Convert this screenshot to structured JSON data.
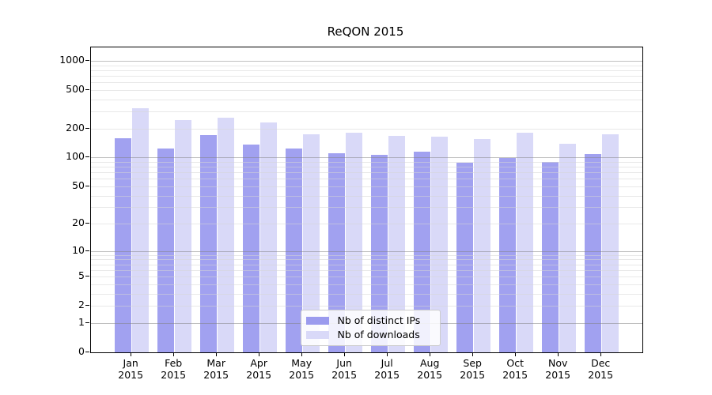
{
  "title": "ReQON 2015",
  "chart_data": {
    "type": "bar",
    "title": "ReQON 2015",
    "categories": [
      "Jan",
      "Feb",
      "Mar",
      "Apr",
      "May",
      "Jun",
      "Jul",
      "Aug",
      "Sep",
      "Oct",
      "Nov",
      "Dec"
    ],
    "x_tick_year": "2015",
    "series": [
      {
        "name": "Nb of distinct IPs",
        "color": "#a1a1f0",
        "legend_color": "#9b9bee",
        "values": [
          158,
          125,
          172,
          136,
          123,
          110,
          107,
          114,
          88,
          99,
          90,
          108
        ]
      },
      {
        "name": "Nb of downloads",
        "color": "#d9d9f8",
        "legend_color": "#d9d9f8",
        "values": [
          326,
          246,
          260,
          230,
          174,
          182,
          169,
          164,
          157,
          180,
          139,
          174
        ]
      }
    ],
    "y_axis": {
      "scale": "log10(v+1)",
      "tick_labels": [
        "1000",
        "500",
        "200",
        "100",
        "50",
        "20",
        "10",
        "5",
        "2",
        "1",
        "0"
      ],
      "tick_values": [
        1000,
        500,
        200,
        100,
        50,
        20,
        10,
        5,
        2,
        1,
        0
      ]
    },
    "legend": {
      "entries": [
        "Nb of distinct IPs",
        "Nb of downloads"
      ],
      "position": "bottom-center"
    },
    "grid": true,
    "ylim": [
      0,
      1380
    ]
  }
}
